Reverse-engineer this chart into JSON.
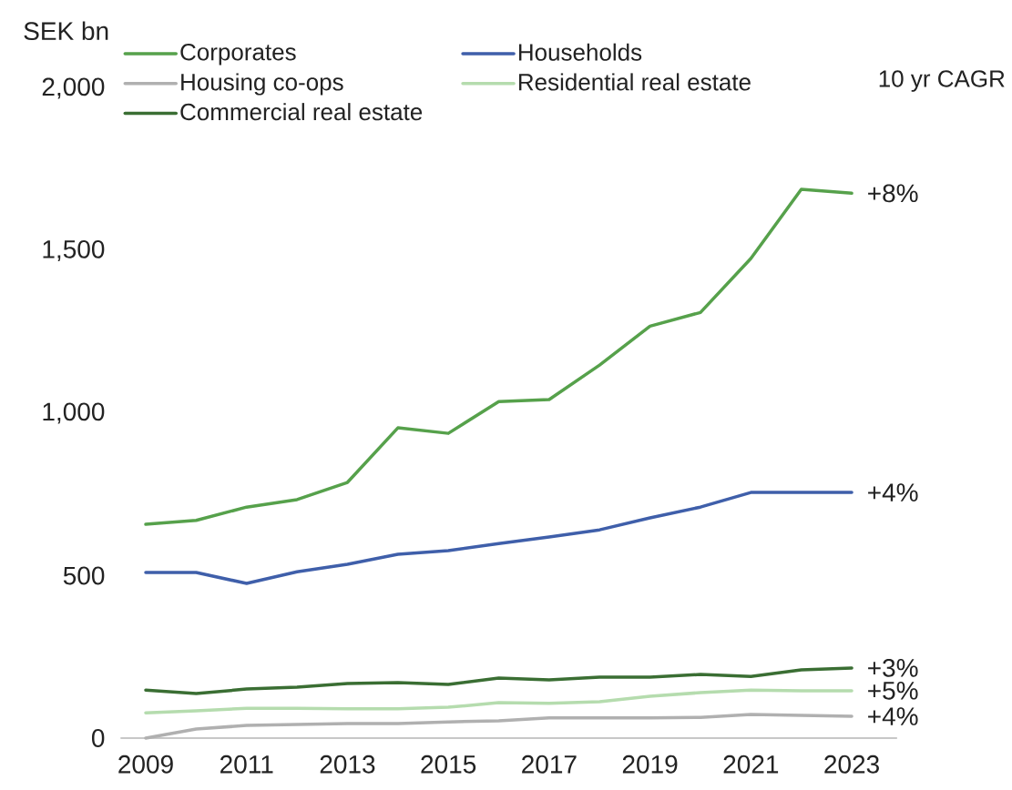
{
  "chart_data": {
    "type": "line",
    "ylabel": "SEK bn",
    "x": [
      2009,
      2010,
      2011,
      2012,
      2013,
      2014,
      2015,
      2016,
      2017,
      2018,
      2019,
      2020,
      2021,
      2022,
      2023
    ],
    "xlim": [
      2008.5,
      2023.9
    ],
    "xticks": [
      2009,
      2011,
      2013,
      2015,
      2017,
      2019,
      2021,
      2023
    ],
    "ylim": [
      0,
      2000
    ],
    "yticks": [
      0,
      500,
      {
        "value": 1000,
        "label": "1,000"
      },
      {
        "value": 1500,
        "label": "1,500"
      },
      {
        "value": 2000,
        "label": "2,000"
      }
    ],
    "legend": "top left",
    "marker": "none",
    "line_style": "solid",
    "series": [
      {
        "name": "Corporates",
        "color": "#56a14b",
        "values": [
          658,
          670,
          711,
          734,
          787,
          955,
          938,
          1036,
          1042,
          1148,
          1268,
          1310,
          1476,
          1689,
          1677
        ]
      },
      {
        "name": "Households",
        "color": "#3f5faa",
        "values": [
          510,
          510,
          476,
          512,
          535,
          566,
          577,
          599,
          619,
          641,
          678,
          711,
          756,
          756,
          756
        ]
      },
      {
        "name": "Housing co-ops",
        "color": "#b0b0b0",
        "values": [
          0,
          28,
          39,
          42,
          45,
          45,
          50,
          53,
          62,
          62,
          62,
          64,
          73,
          70,
          67
        ]
      },
      {
        "name": "Residential real estate",
        "color": "#b5dcae",
        "values": [
          78,
          84,
          92,
          92,
          90,
          90,
          95,
          109,
          107,
          112,
          129,
          140,
          148,
          146,
          146
        ]
      },
      {
        "name": "Commercial real estate",
        "color": "#3a6e33",
        "values": [
          148,
          137,
          151,
          157,
          168,
          171,
          165,
          185,
          179,
          188,
          188,
          196,
          190,
          210,
          216
        ]
      }
    ],
    "annotations": [
      "10 yr CAGR",
      "+8%",
      "+4%",
      "+3%",
      "+5%",
      "+4%"
    ]
  }
}
